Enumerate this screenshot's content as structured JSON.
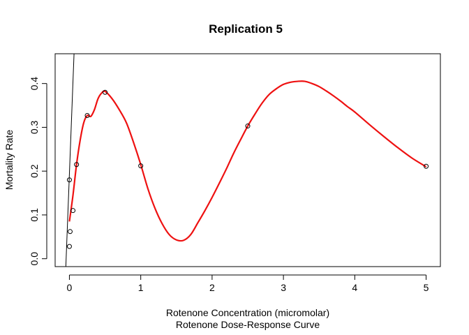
{
  "chart_data": {
    "type": "scatter",
    "title": "Replication 5",
    "xlabel": "Rotenone Concentration (micromolar)",
    "sublabel": "Rotenone Dose-Response Curve",
    "ylabel": "Mortality Rate",
    "xlim": [
      -0.2,
      5.2
    ],
    "ylim": [
      -0.018,
      0.468
    ],
    "x_ticks": [
      0,
      1,
      2,
      3,
      4,
      5
    ],
    "y_ticks": [
      0.0,
      0.1,
      0.2,
      0.3,
      0.4
    ],
    "x_tick_labels": [
      "0",
      "1",
      "2",
      "3",
      "4",
      "5"
    ],
    "y_tick_labels": [
      "0.0",
      "0.1",
      "0.2",
      "0.3",
      "0.4"
    ],
    "grid": false,
    "points": [
      {
        "x": 0.0,
        "y": 0.18
      },
      {
        "x": 0.0,
        "y": 0.028
      },
      {
        "x": 0.01,
        "y": 0.062
      },
      {
        "x": 0.05,
        "y": 0.11
      },
      {
        "x": 0.1,
        "y": 0.215
      },
      {
        "x": 0.25,
        "y": 0.327
      },
      {
        "x": 0.5,
        "y": 0.38
      },
      {
        "x": 1.0,
        "y": 0.212
      },
      {
        "x": 2.5,
        "y": 0.303
      },
      {
        "x": 5.0,
        "y": 0.211
      }
    ],
    "smooth_curve": {
      "color": "#ee1111",
      "x": [
        0.0,
        0.05,
        0.1,
        0.15,
        0.2,
        0.25,
        0.3,
        0.35,
        0.4,
        0.45,
        0.5,
        0.6,
        0.7,
        0.8,
        0.9,
        1.0,
        1.1,
        1.2,
        1.3,
        1.4,
        1.5,
        1.6,
        1.7,
        1.8,
        1.9,
        2.0,
        2.1,
        2.2,
        2.3,
        2.4,
        2.5,
        2.6,
        2.7,
        2.8,
        2.9,
        3.0,
        3.1,
        3.2,
        3.3,
        3.4,
        3.5,
        3.6,
        3.7,
        3.8,
        3.9,
        4.0,
        4.2,
        4.4,
        4.6,
        4.8,
        5.0
      ],
      "y": [
        0.085,
        0.145,
        0.215,
        0.27,
        0.31,
        0.327,
        0.325,
        0.34,
        0.365,
        0.378,
        0.382,
        0.365,
        0.34,
        0.31,
        0.265,
        0.215,
        0.16,
        0.115,
        0.08,
        0.055,
        0.043,
        0.042,
        0.055,
        0.082,
        0.11,
        0.14,
        0.172,
        0.205,
        0.24,
        0.272,
        0.303,
        0.33,
        0.355,
        0.375,
        0.388,
        0.398,
        0.403,
        0.405,
        0.405,
        0.4,
        0.393,
        0.383,
        0.372,
        0.36,
        0.347,
        0.335,
        0.307,
        0.28,
        0.254,
        0.23,
        0.21
      ]
    },
    "reference_line": {
      "color": "#000000",
      "x": [
        -0.05,
        0.065
      ],
      "y": [
        -0.018,
        0.468
      ]
    }
  }
}
